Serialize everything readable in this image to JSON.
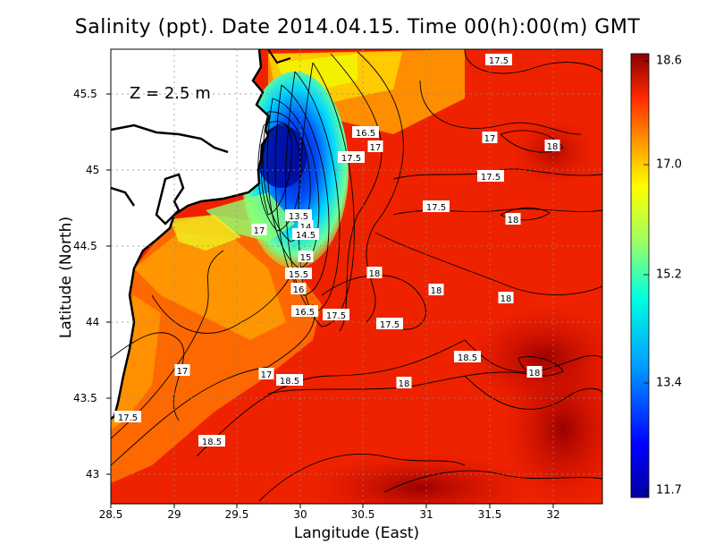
{
  "title": "Salinity (ppt). Date 2014.04.15. Time 00(h):00(m) GMT",
  "depth_label": "Z = 2.5 m",
  "xlabel": "Langitude (East)",
  "ylabel": "Latitude (North)",
  "x_ticks": [
    "28.5",
    "29",
    "29.5",
    "30",
    "30.5",
    "31",
    "31.5",
    "32"
  ],
  "y_ticks": [
    "45.5",
    "45",
    "44.5",
    "44",
    "43.5",
    "43"
  ],
  "colorbar_ticks": [
    "18.6",
    "17.0",
    "15.2",
    "13.4",
    "11.7"
  ],
  "contour_labels": [
    "17.5",
    "16.5",
    "17",
    "17.5",
    "17",
    "18",
    "17.5",
    "13.5",
    "14",
    "14.5",
    "17",
    "17.5",
    "18",
    "15",
    "18",
    "15.5",
    "16",
    "18",
    "18",
    "16.5",
    "17.5",
    "17.5",
    "18.5",
    "18",
    "17",
    "18.5",
    "18",
    "17",
    "17.5",
    "18.5"
  ],
  "colors": {
    "max_color": "#8b0000",
    "min_color": "#00008b",
    "land": "#ffffff",
    "coast": "#000000",
    "contour": "#000000"
  }
}
